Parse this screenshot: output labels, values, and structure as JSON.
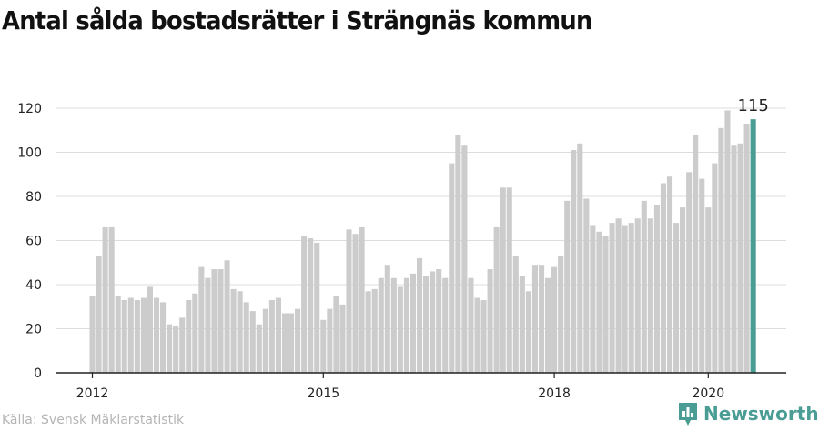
{
  "title": "Antal sålda bostadsrätter i Strängnäs kommun",
  "source": "Källa: Svensk Mäklarstatistik",
  "brand": {
    "name": "Newsworthy",
    "logo_icon": "newsworthy-logo-icon"
  },
  "colors": {
    "bar": "#cccccc",
    "highlight": "#4a9d94",
    "grid": "#dddddd",
    "axis": "#222222"
  },
  "chart_data": {
    "type": "bar",
    "title": "Antal sålda bostadsrätter i Strängnäs kommun",
    "xlabel": "",
    "ylabel": "",
    "ylim": [
      0,
      120
    ],
    "yticks": [
      "0",
      "20",
      "40",
      "60",
      "80",
      "100",
      "120"
    ],
    "xticks": [
      "2012",
      "2015",
      "2018",
      "2020"
    ],
    "start": "2012-01",
    "frequency": "monthly",
    "values": [
      35,
      53,
      66,
      66,
      35,
      33,
      34,
      33,
      34,
      39,
      34,
      32,
      22,
      21,
      25,
      33,
      36,
      48,
      43,
      47,
      47,
      51,
      38,
      37,
      32,
      28,
      22,
      29,
      33,
      34,
      27,
      27,
      29,
      62,
      61,
      59,
      24,
      29,
      35,
      31,
      65,
      63,
      66,
      37,
      38,
      43,
      49,
      43,
      39,
      43,
      45,
      52,
      44,
      46,
      47,
      43,
      95,
      108,
      103,
      43,
      34,
      33,
      47,
      66,
      84,
      84,
      53,
      44,
      37,
      49,
      49,
      43,
      48,
      53,
      78,
      101,
      104,
      79,
      67,
      64,
      62,
      68,
      70,
      67,
      68,
      70,
      78,
      70,
      76,
      86,
      89,
      68,
      75,
      91,
      108,
      88,
      75,
      95,
      111,
      119,
      103,
      104,
      113,
      115
    ],
    "highlight_label": "115",
    "grid": true,
    "legend": "none"
  }
}
